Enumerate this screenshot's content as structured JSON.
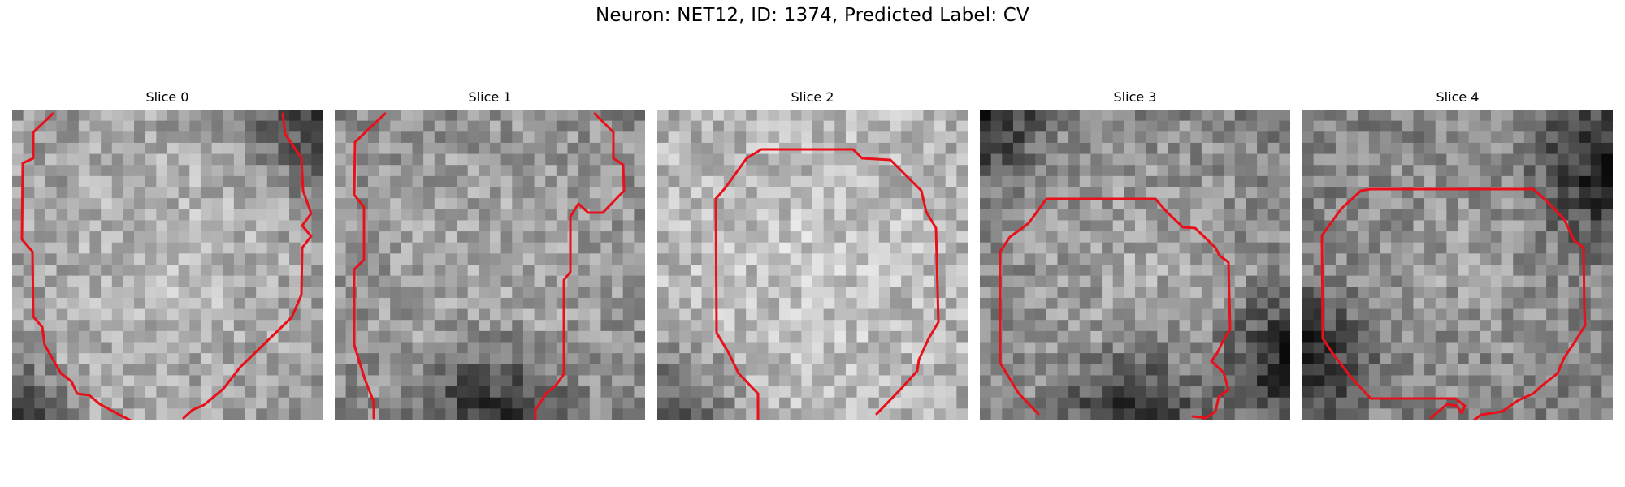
{
  "figure": {
    "title": "Neuron: NET12, ID: 1374, Predicted Label: CV"
  },
  "contour_color": "#e8101a",
  "panels": [
    {
      "title": "Slice 0"
    },
    {
      "title": "Slice 1"
    },
    {
      "title": "Slice 2"
    },
    {
      "title": "Slice 3"
    },
    {
      "title": "Slice 4"
    }
  ]
}
